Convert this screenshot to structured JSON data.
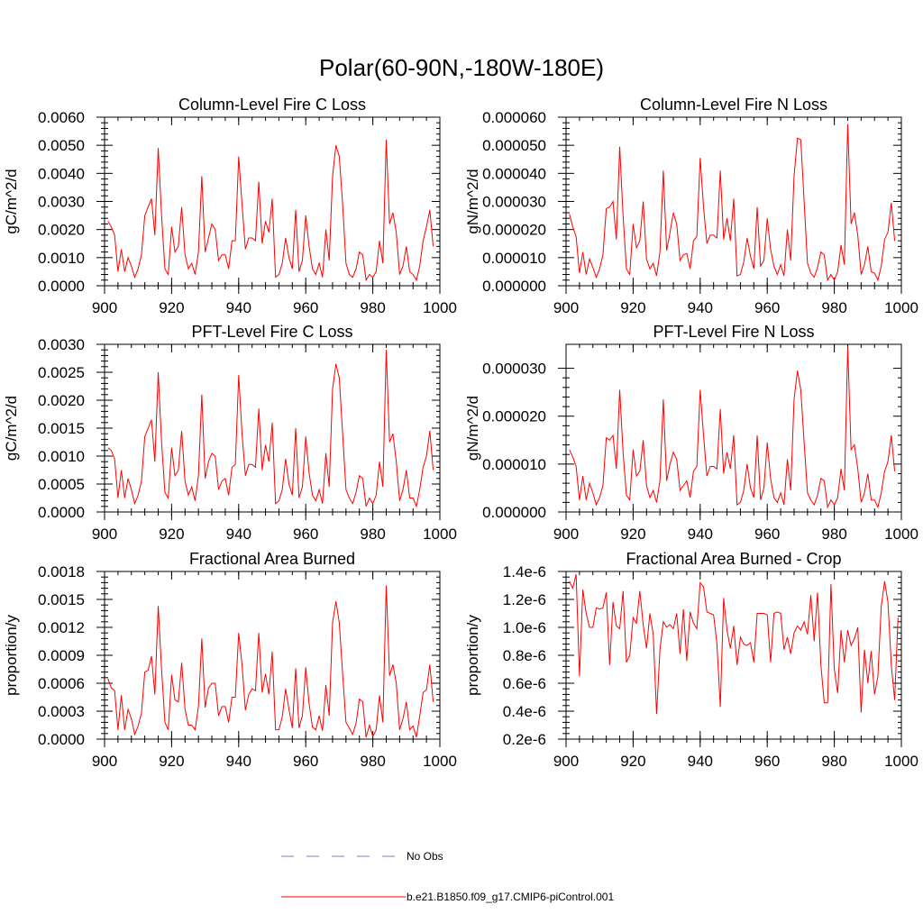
{
  "figure": {
    "title": "Polar(60-90N,-180W-180E)",
    "legend": [
      {
        "label": "No Obs",
        "style": "dashed",
        "color": "#7b7bc4"
      },
      {
        "label": "b.e21.B1850.f09_g17.CMIP6-piControl.001",
        "style": "solid",
        "color": "#ff0000"
      }
    ]
  },
  "chart_data": [
    {
      "type": "line",
      "title": "Column-Level Fire C Loss",
      "xlabel": "",
      "ylabel": "gC/m^2/d",
      "xlim": [
        900,
        1000
      ],
      "ylim": [
        0,
        0.006
      ],
      "xticks": [
        "900",
        "920",
        "940",
        "960",
        "980",
        "1000"
      ],
      "yticks": [
        {
          "v": 0,
          "label": "0.0000"
        },
        {
          "v": 0.001,
          "label": "0.0010"
        },
        {
          "v": 0.002,
          "label": "0.0020"
        },
        {
          "v": 0.003,
          "label": "0.0030"
        },
        {
          "v": 0.004,
          "label": "0.0040"
        },
        {
          "v": 0.005,
          "label": "0.0050"
        },
        {
          "v": 0.006,
          "label": "0.0060"
        }
      ],
      "series": [
        {
          "name": "b.e21.B1850.f09_g17.CMIP6-piControl.001",
          "color": "#ff0000",
          "x0": 901,
          "values": [
            0.0023,
            0.0021,
            0.0018,
            0.0005,
            0.0013,
            0.0005,
            0.001,
            0.0007,
            0.0003,
            0.0006,
            0.0011,
            0.0025,
            0.0028,
            0.0031,
            0.0018,
            0.0049,
            0.0025,
            0.0006,
            0.0004,
            0.0021,
            0.0012,
            0.0014,
            0.0028,
            0.0011,
            0.0006,
            0.0008,
            0.0004,
            0.0012,
            0.0039,
            0.0012,
            0.0017,
            0.0022,
            0.002,
            0.0009,
            0.0011,
            0.0011,
            0.0006,
            0.0016,
            0.0016,
            0.0046,
            0.0029,
            0.0013,
            0.0017,
            0.0017,
            0.0016,
            0.0037,
            0.0015,
            0.0023,
            0.0019,
            0.0031,
            0.0003,
            0.0004,
            0.0008,
            0.0017,
            0.001,
            0.0006,
            0.0027,
            0.0005,
            0.0009,
            0.0025,
            0.0014,
            0.0006,
            0.0004,
            0.0008,
            0.0003,
            0.002,
            0.0009,
            0.0039,
            0.005,
            0.0046,
            0.0029,
            0.0008,
            0.0004,
            0.0003,
            0.0006,
            0.0012,
            0.0011,
            0.0002,
            0.0004,
            0.0003,
            0.0005,
            0.0016,
            0.0008,
            0.0052,
            0.0022,
            0.0026,
            0.0019,
            0.0004,
            0.0007,
            0.0014,
            0.0005,
            0.0004,
            0.0002,
            0.0007,
            0.0016,
            0.0021,
            0.0027,
            0.0014
          ]
        }
      ]
    },
    {
      "type": "line",
      "title": "Column-Level Fire N Loss",
      "xlabel": "",
      "ylabel": "gN/m^2/d",
      "xlim": [
        900,
        1000
      ],
      "ylim": [
        0,
        6e-05
      ],
      "xticks": [
        "900",
        "920",
        "940",
        "960",
        "980",
        "1000"
      ],
      "yticks": [
        {
          "v": 0,
          "label": "0.000000"
        },
        {
          "v": 1e-05,
          "label": "0.000010"
        },
        {
          "v": 2e-05,
          "label": "0.000020"
        },
        {
          "v": 3e-05,
          "label": "0.000030"
        },
        {
          "v": 4e-05,
          "label": "0.000040"
        },
        {
          "v": 5e-05,
          "label": "0.000050"
        },
        {
          "v": 6e-05,
          "label": "0.000060"
        }
      ],
      "series": [
        {
          "name": "b.e21.B1850.f09_g17.CMIP6-piControl.001",
          "color": "#ff0000",
          "x0": 901,
          "values": [
            2.55e-05,
            2.1e-05,
            1.75e-05,
            4.5e-06,
            1.2e-05,
            4e-06,
            9.5e-06,
            6.5e-06,
            3e-06,
            6e-06,
            1.1e-05,
            2.75e-05,
            2.8e-05,
            3e-05,
            1.65e-05,
            4.95e-05,
            2.5e-05,
            6e-06,
            4e-06,
            2.2e-05,
            1.35e-05,
            1.6e-05,
            3e-05,
            9.5e-06,
            6e-06,
            8e-06,
            3.5e-06,
            1.2e-05,
            4.1e-05,
            1.25e-05,
            1.9e-05,
            2.6e-05,
            2.2e-05,
            9e-06,
            1.1e-05,
            1.15e-05,
            6e-06,
            1.6e-05,
            1.75e-05,
            4.55e-05,
            2.8e-05,
            1.5e-05,
            1.8e-05,
            1.8e-05,
            1.7e-05,
            4.1e-05,
            1.65e-05,
            2.4e-05,
            1.6e-05,
            3.1e-05,
            3.5e-06,
            4e-06,
            8.5e-06,
            1.7e-05,
            1.05e-05,
            6e-06,
            2.8e-05,
            7e-06,
            9e-06,
            2.4e-05,
            1.3e-05,
            7e-06,
            4e-06,
            7.5e-06,
            3.5e-06,
            2e-05,
            9e-06,
            3.9e-05,
            5.25e-05,
            5.2e-05,
            3e-05,
            8e-06,
            4.5e-06,
            3e-06,
            6.5e-06,
            1.2e-05,
            1.1e-05,
            2e-06,
            4e-06,
            2e-06,
            5e-06,
            1.45e-05,
            7.5e-06,
            5.75e-05,
            2.2e-05,
            2.6e-05,
            1.8e-05,
            4e-06,
            7.5e-06,
            1.4e-05,
            5e-06,
            4.5e-06,
            2e-06,
            7e-06,
            1.65e-05,
            1.9e-05,
            2.95e-05,
            1.6e-05
          ]
        }
      ]
    },
    {
      "type": "line",
      "title": "PFT-Level Fire C Loss",
      "xlabel": "",
      "ylabel": "gC/m^2/d",
      "xlim": [
        900,
        1000
      ],
      "ylim": [
        0,
        0.003
      ],
      "xticks": [
        "900",
        "920",
        "940",
        "960",
        "980",
        "1000"
      ],
      "yticks": [
        {
          "v": 0,
          "label": "0.0000"
        },
        {
          "v": 0.0005,
          "label": "0.0005"
        },
        {
          "v": 0.001,
          "label": "0.0010"
        },
        {
          "v": 0.0015,
          "label": "0.0015"
        },
        {
          "v": 0.002,
          "label": "0.0020"
        },
        {
          "v": 0.0025,
          "label": "0.0025"
        },
        {
          "v": 0.003,
          "label": "0.0030"
        }
      ],
      "series": [
        {
          "name": "b.e21.B1850.f09_g17.CMIP6-piControl.001",
          "color": "#ff0000",
          "x0": 901,
          "values": [
            0.00115,
            0.0011,
            0.00095,
            0.00025,
            0.00075,
            0.00025,
            0.0006,
            0.0004,
            0.00015,
            0.0003,
            0.00055,
            0.00135,
            0.0015,
            0.00165,
            0.0009,
            0.0025,
            0.00125,
            0.00035,
            0.00025,
            0.00115,
            0.00065,
            0.00075,
            0.00145,
            0.00055,
            0.0003,
            0.00045,
            0.0002,
            0.00065,
            0.0021,
            0.0006,
            0.0009,
            0.00105,
            0.001,
            0.0004,
            0.00055,
            0.0006,
            0.0003,
            0.0008,
            0.00085,
            0.00245,
            0.0014,
            0.00065,
            0.00085,
            0.00085,
            0.0008,
            0.00185,
            0.00075,
            0.0012,
            0.0009,
            0.0016,
            0.00015,
            0.0002,
            0.0004,
            0.00095,
            0.0005,
            0.0003,
            0.0015,
            0.00025,
            0.00045,
            0.00135,
            0.0007,
            0.0003,
            0.0002,
            0.0004,
            0.00015,
            0.00105,
            0.00045,
            0.0022,
            0.00265,
            0.0024,
            0.0014,
            0.0004,
            0.00025,
            0.00015,
            0.00035,
            0.00065,
            0.0006,
            0.0001,
            0.00025,
            0.00015,
            0.0003,
            0.0009,
            0.00045,
            0.0029,
            0.00125,
            0.0014,
            0.0009,
            0.0002,
            0.0004,
            0.00075,
            0.00025,
            0.00025,
            0.0001,
            0.0004,
            0.0008,
            0.001,
            0.00145,
            0.00075
          ]
        }
      ]
    },
    {
      "type": "line",
      "title": "PFT-Level Fire N Loss",
      "xlabel": "",
      "ylabel": "gN/m^2/d",
      "xlim": [
        900,
        1000
      ],
      "ylim": [
        0,
        3.5e-05
      ],
      "xticks": [
        "900",
        "920",
        "940",
        "960",
        "980",
        "1000"
      ],
      "yticks": [
        {
          "v": 0,
          "label": "0.000000"
        },
        {
          "v": 1e-05,
          "label": "0.000010"
        },
        {
          "v": 2e-05,
          "label": "0.000020"
        },
        {
          "v": 3e-05,
          "label": "0.000030"
        }
      ],
      "series": [
        {
          "name": "b.e21.B1850.f09_g17.CMIP6-piControl.001",
          "color": "#ff0000",
          "x0": 901,
          "values": [
            1.3e-05,
            1.15e-05,
            9.5e-06,
            2.5e-06,
            7.5e-06,
            2.5e-06,
            6e-06,
            4e-06,
            1.5e-06,
            3e-06,
            5.5e-06,
            1.55e-05,
            1.5e-05,
            1.6e-05,
            9e-06,
            2.55e-05,
            1.25e-05,
            3.5e-06,
            2.5e-06,
            1.3e-05,
            7.5e-06,
            8.5e-06,
            1.5e-05,
            5.5e-06,
            3e-06,
            4.5e-06,
            2e-06,
            6.5e-06,
            2.35e-05,
            6.5e-06,
            1e-05,
            1.25e-05,
            1.1e-05,
            4.5e-06,
            5.5e-06,
            6.5e-06,
            3e-06,
            8.5e-06,
            9.5e-06,
            2.55e-05,
            1.6e-05,
            7.5e-06,
            9.5e-06,
            9.5e-06,
            9e-06,
            2.15e-05,
            8e-06,
            1.25e-05,
            9e-06,
            1.6e-05,
            1.5e-06,
            2e-06,
            4.5e-06,
            1e-05,
            5e-06,
            3e-06,
            1.6e-05,
            2.5e-06,
            5e-06,
            1.45e-05,
            7e-06,
            3e-06,
            2e-06,
            4e-06,
            1.5e-06,
            1.1e-05,
            4.5e-06,
            2.35e-05,
            2.95e-05,
            2.55e-05,
            1.45e-05,
            4e-06,
            2.5e-06,
            1.5e-06,
            3.5e-06,
            7e-06,
            6.5e-06,
            1e-06,
            2.5e-06,
            1.5e-06,
            3e-06,
            9e-06,
            4.5e-06,
            3.45e-05,
            1.3e-05,
            1.4e-05,
            9e-06,
            2e-06,
            4e-06,
            8e-06,
            2.5e-06,
            2.5e-06,
            1e-06,
            4e-06,
            8.5e-06,
            1.05e-05,
            1.6e-05,
            8.5e-06
          ]
        }
      ]
    },
    {
      "type": "line",
      "title": "Fractional Area Burned",
      "xlabel": "",
      "ylabel": "proportion/y",
      "xlim": [
        900,
        1000
      ],
      "ylim": [
        0,
        0.0018
      ],
      "xticks": [
        "900",
        "920",
        "940",
        "960",
        "980",
        "1000"
      ],
      "yticks": [
        {
          "v": 0,
          "label": "0.0000"
        },
        {
          "v": 0.0003,
          "label": "0.0003"
        },
        {
          "v": 0.0006,
          "label": "0.0006"
        },
        {
          "v": 0.0009,
          "label": "0.0009"
        },
        {
          "v": 0.0012,
          "label": "0.0012"
        },
        {
          "v": 0.0015,
          "label": "0.0015"
        },
        {
          "v": 0.0018,
          "label": "0.0018"
        }
      ],
      "series": [
        {
          "name": "b.e21.B1850.f09_g17.CMIP6-piControl.001",
          "color": "#ff0000",
          "x0": 901,
          "values": [
            0.00065,
            0.00055,
            0.00052,
            0.0001,
            0.00047,
            0.0001,
            0.00032,
            0.00022,
            5e-05,
            0.00014,
            0.00028,
            0.00072,
            0.00074,
            0.00089,
            0.00048,
            0.00143,
            0.00075,
            0.00018,
            0.0001,
            0.00069,
            0.00042,
            0.0004,
            0.00082,
            0.00032,
            0.00015,
            0.00015,
            0.0001,
            0.00035,
            0.00108,
            0.00034,
            0.00055,
            0.0006,
            0.0006,
            0.00025,
            0.00035,
            0.00035,
            0.00018,
            0.00045,
            0.00045,
            0.00114,
            0.0008,
            0.00031,
            0.00048,
            0.00054,
            0.00052,
            0.00114,
            0.0005,
            0.0007,
            0.00048,
            0.00094,
            0.0001,
            0.0001,
            0.00024,
            0.00054,
            0.00032,
            0.00012,
            0.00076,
            0.00012,
            0.00025,
            0.00077,
            0.00038,
            0.00013,
            0.0001,
            0.00025,
            9e-05,
            0.00058,
            0.00025,
            0.00125,
            0.00148,
            0.00125,
            0.0007,
            0.00018,
            0.00012,
            5e-05,
            0.00017,
            0.00043,
            0.0004,
            2e-05,
            0.00015,
            3e-05,
            0.0001,
            0.00047,
            0.00018,
            0.00165,
            0.00068,
            0.0008,
            0.0006,
            0.0001,
            0.00022,
            0.0004,
            0.0001,
            0.00014,
            2e-05,
            0.00025,
            0.0005,
            0.00053,
            0.0008,
            0.0004
          ]
        }
      ]
    },
    {
      "type": "line",
      "title": "Fractional Area Burned - Crop",
      "xlabel": "",
      "ylabel": "proportion/y",
      "xlim": [
        900,
        1000
      ],
      "ylim": [
        2e-07,
        1.4e-06
      ],
      "xticks": [
        "900",
        "920",
        "940",
        "960",
        "980",
        "1000"
      ],
      "yticks": [
        {
          "v": 2e-07,
          "label": "0.2e-6"
        },
        {
          "v": 4e-07,
          "label": "0.4e-6"
        },
        {
          "v": 6e-07,
          "label": "0.6e-6"
        },
        {
          "v": 8e-07,
          "label": "0.8e-6"
        },
        {
          "v": 1e-06,
          "label": "1.0e-6"
        },
        {
          "v": 1.2e-06,
          "label": "1.2e-6"
        },
        {
          "v": 1.4e-06,
          "label": "1.4e-6"
        }
      ],
      "series": [
        {
          "name": "b.e21.B1850.f09_g17.CMIP6-piControl.001",
          "color": "#ff0000",
          "x0": 901,
          "values": [
            1.33e-06,
            1.28e-06,
            1.38e-06,
            6.5e-07,
            1.27e-06,
            1.1e-06,
            1e-06,
            1e-06,
            1.14e-06,
            1.13e-06,
            1.14e-06,
            1.25e-06,
            7.3e-07,
            1.18e-06,
            1.01e-06,
            9.9e-07,
            1.26e-06,
            7.5e-07,
            8e-07,
            1.07e-06,
            1.03e-06,
            1.26e-06,
            1.02e-06,
            8.5e-07,
            1.1e-06,
            9.5e-07,
            3.8e-07,
            8.4e-07,
            1.04e-06,
            1e-06,
            1.02e-06,
            9.9e-07,
            1.1e-06,
            8.1e-07,
            1.13e-06,
            7.6e-07,
            1.11e-06,
            1.03e-06,
            9.9e-07,
            1.32e-06,
            1.29e-06,
            1.11e-06,
            1.1e-06,
            1.09e-06,
            8.8e-07,
            4.3e-07,
            1.21e-06,
            9.8e-07,
            8.5e-07,
            1.01e-06,
            7.3e-07,
            9.3e-07,
            8.8e-07,
            8.7e-07,
            8.9e-07,
            7.5e-07,
            1.1e-06,
            1.1e-06,
            1.1e-06,
            1.09e-06,
            7.5e-07,
            1.1e-06,
            1.11e-06,
            1.1e-06,
            8.4e-07,
            9.3e-07,
            8.1e-07,
            9.6e-07,
            1.01e-06,
            9.8e-07,
            1.04e-06,
            9.5e-07,
            1.23e-06,
            9e-07,
            1.25e-06,
            7.3e-07,
            4.6e-07,
            4.6e-07,
            1.31e-06,
            7e-07,
            5.3e-07,
            9.8e-07,
            7.5e-07,
            9.8e-07,
            8.7e-07,
            9.2e-07,
            1e-06,
            3.9e-07,
            8.4e-07,
            6e-07,
            8.3e-07,
            5.2e-07,
            6.5e-07,
            1.15e-06,
            1.33e-06,
            1.18e-06,
            7.3e-07,
            4.8e-07,
            1.07e-06
          ]
        }
      ]
    }
  ]
}
